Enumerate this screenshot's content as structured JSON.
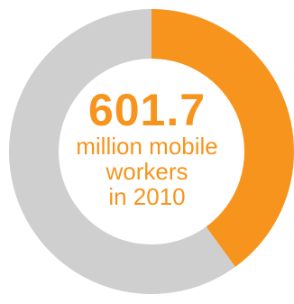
{
  "chart_data": {
    "type": "pie",
    "donut": true,
    "slices": [
      {
        "value": 40,
        "color": "#f7941d"
      },
      {
        "value": 60,
        "color": "#cfcfd0"
      }
    ],
    "center_value": "601.7",
    "center_lines": [
      "million mobile",
      "workers",
      "in 2010"
    ],
    "text_color": "#f7941d"
  }
}
